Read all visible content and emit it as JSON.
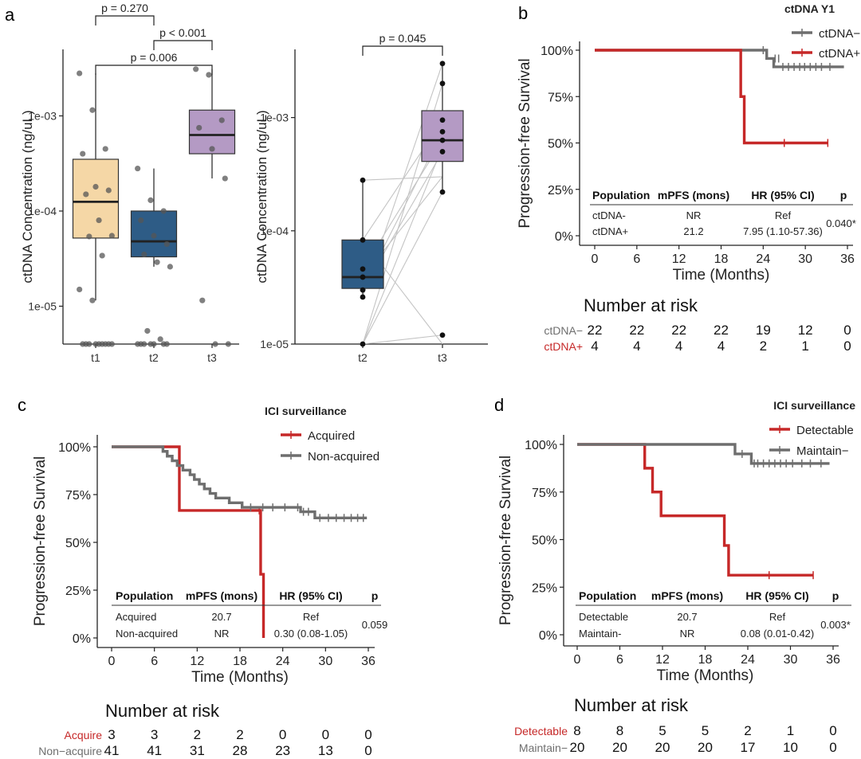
{
  "panels": {
    "a": "a",
    "b": "b",
    "c": "c",
    "d": "d"
  },
  "chart_data": [
    {
      "id": "a-left",
      "type": "box",
      "ylabel": "ctDNA Concentration (ng/uL)",
      "yscale": "log",
      "ylim": [
        4e-06,
        0.005
      ],
      "yticks": [
        "1e-05",
        "1e-04",
        "1e-03"
      ],
      "categories": [
        "t1",
        "t2",
        "t3"
      ],
      "colors": [
        "#f5d7a6",
        "#2e5c86",
        "#b49ac4"
      ],
      "boxes": [
        {
          "q1": 5.2e-05,
          "median": 0.000125,
          "q3": 0.00035,
          "whisker_low": 1.15e-05,
          "whisker_high": 0.0028
        },
        {
          "q1": 3.3e-05,
          "median": 4.8e-05,
          "q3": 0.0001,
          "whisker_low": 2.6e-05,
          "whisker_high": 0.00028
        },
        {
          "q1": 0.0004,
          "median": 0.00063,
          "q3": 0.00115,
          "whisker_low": 0.00022,
          "whisker_high": 0.0031
        }
      ],
      "points": [
        [
          0.0028,
          0.00115,
          0.00045,
          0.0004,
          0.00018,
          0.000165,
          0.00015,
          8e-05,
          5.5e-05,
          5.4e-05,
          3.4e-05,
          1.5e-05,
          1.15e-05,
          4e-06,
          4e-06,
          4e-06,
          4e-06,
          4e-06,
          4e-06,
          4e-06,
          4e-06,
          4e-06
        ],
        [
          0.00028,
          0.00013,
          0.0001,
          8e-05,
          5.5e-05,
          4.5e-05,
          3.5e-05,
          2.9e-05,
          2.6e-05,
          5.5e-06,
          4.5e-06,
          4e-06,
          4e-06,
          4e-06,
          4e-06,
          4e-06,
          4e-06,
          4e-06
        ],
        [
          0.0031,
          0.0027,
          0.0009,
          0.00075,
          0.00045,
          0.00022,
          1.15e-05,
          4e-06,
          4e-06
        ]
      ],
      "brackets": [
        {
          "from": 1,
          "to": 2,
          "label": "p = 0.270"
        },
        {
          "from": 2,
          "to": 3,
          "label": "p < 0.001"
        },
        {
          "from": 1,
          "to": 3,
          "label": "p = 0.006"
        }
      ]
    },
    {
      "id": "a-right",
      "type": "box",
      "ylabel": "ctDNA Concentration (ng/uL)",
      "yscale": "log",
      "ylim": [
        1e-05,
        0.004
      ],
      "yticks": [
        "1e-05",
        "1e-04",
        "1e-03"
      ],
      "categories": [
        "t2",
        "t3"
      ],
      "colors": [
        "#2e5c86",
        "#b49ac4"
      ],
      "boxes": [
        {
          "q1": 3.1e-05,
          "median": 3.9e-05,
          "q3": 8.3e-05,
          "whisker_low": 2.6e-05,
          "whisker_high": 0.00028
        },
        {
          "q1": 0.00041,
          "median": 0.00063,
          "q3": 0.00115,
          "whisker_low": 0.00022,
          "whisker_high": 0.003
        }
      ],
      "paired_lines": [
        [
          0.00028,
          0.0003
        ],
        [
          8.3e-05,
          0.00095
        ],
        [
          4.6e-05,
          0.00063
        ],
        [
          3.9e-05,
          0.0003
        ],
        [
          3.1e-05,
          0.00075
        ],
        [
          3e-05,
          0.0005
        ],
        [
          2.6e-05,
          0.003
        ],
        [
          1e-05,
          0.002
        ],
        [
          1e-05,
          1.2e-05
        ],
        [
          1e-05,
          0.00022
        ],
        [
          8.3e-05,
          1e-05
        ],
        [
          1e-05,
          0.00055
        ]
      ],
      "points_t2": [
        0.00028,
        8.3e-05,
        4.6e-05,
        3.9e-05,
        3e-05,
        2.6e-05,
        1e-05
      ],
      "points_t3": [
        0.003,
        0.002,
        0.00095,
        0.00075,
        0.00063,
        0.0005,
        0.00022,
        1.2e-05
      ],
      "brackets": [
        {
          "from": 1,
          "to": 2,
          "label": "p = 0.045"
        }
      ]
    },
    {
      "id": "b",
      "type": "line",
      "subtype": "kaplan-meier",
      "legend_title": "ctDNA Y1",
      "legend_position": "top-right",
      "xlabel": "Time (Months)",
      "ylabel": "Progression-free Survival",
      "xlim": [
        0,
        36
      ],
      "xticks": [
        0,
        6,
        12,
        18,
        24,
        30,
        36
      ],
      "ylim": [
        0,
        1
      ],
      "yticks": [
        "0%",
        "25%",
        "50%",
        "75%",
        "100%"
      ],
      "series": [
        {
          "name": "ctDNA−",
          "color": "#6e6e6e",
          "steps": [
            [
              0,
              1
            ],
            [
              24.5,
              0.955
            ],
            [
              25.5,
              0.91
            ],
            [
              35.5,
              0.91
            ]
          ],
          "censor": [
            [
              24,
              1
            ],
            [
              25.7,
              0.955
            ],
            [
              26.2,
              0.955
            ],
            [
              26.8,
              0.91
            ],
            [
              27.6,
              0.91
            ],
            [
              28.4,
              0.91
            ],
            [
              29.2,
              0.91
            ],
            [
              29.9,
              0.91
            ],
            [
              30.7,
              0.91
            ],
            [
              31.5,
              0.91
            ],
            [
              32.3,
              0.91
            ],
            [
              33.5,
              0.91
            ]
          ]
        },
        {
          "name": "ctDNA+",
          "color": "#c62828",
          "steps": [
            [
              0,
              1
            ],
            [
              20.8,
              0.75
            ],
            [
              21.3,
              0.5
            ],
            [
              33.2,
              0.5
            ]
          ],
          "censor": [
            [
              27,
              0.5
            ],
            [
              33.2,
              0.5
            ]
          ]
        }
      ],
      "table": {
        "headers": [
          "Population",
          "mPFS (mons)",
          "HR (95% CI)",
          "p"
        ],
        "rows": [
          [
            "ctDNA-",
            "NR",
            "Ref"
          ],
          [
            "ctDNA+",
            "21.2",
            "7.95 (1.10-57.36)"
          ]
        ],
        "p": "0.040*"
      },
      "risk": {
        "title": "Number at risk",
        "rows": [
          {
            "label": "ctDNA−",
            "color": "#6e6e6e",
            "values": [
              "22",
              "22",
              "22",
              "22",
              "19",
              "12",
              "0"
            ]
          },
          {
            "label": "ctDNA+",
            "color": "#c62828",
            "values": [
              "4",
              "4",
              "4",
              "4",
              "2",
              "1",
              "0"
            ]
          }
        ]
      }
    },
    {
      "id": "c",
      "type": "line",
      "subtype": "kaplan-meier",
      "legend_title": "ICI surveillance",
      "legend_position": "top-right",
      "xlabel": "Time (Months)",
      "ylabel": "Progression-free Survival",
      "xlim": [
        0,
        36
      ],
      "xticks": [
        0,
        6,
        12,
        18,
        24,
        30,
        36
      ],
      "ylim": [
        0,
        1
      ],
      "yticks": [
        "0%",
        "25%",
        "50%",
        "75%",
        "100%"
      ],
      "series": [
        {
          "name": "Acquired",
          "color": "#c62828",
          "steps": [
            [
              0,
              1
            ],
            [
              9.5,
              0.667
            ],
            [
              20.9,
              0.333
            ],
            [
              21.3,
              0
            ]
          ],
          "censor": [
            [
              20.7,
              0.667
            ]
          ]
        },
        {
          "name": "Non-acquired",
          "color": "#6e6e6e",
          "steps": [
            [
              0,
              1
            ],
            [
              7.2,
              0.976
            ],
            [
              7.8,
              0.951
            ],
            [
              8.5,
              0.927
            ],
            [
              9.2,
              0.902
            ],
            [
              10.0,
              0.878
            ],
            [
              11.0,
              0.854
            ],
            [
              11.6,
              0.829
            ],
            [
              12.3,
              0.805
            ],
            [
              13.0,
              0.78
            ],
            [
              13.8,
              0.756
            ],
            [
              14.6,
              0.732
            ],
            [
              16.5,
              0.707
            ],
            [
              18.3,
              0.683
            ],
            [
              26.5,
              0.66
            ],
            [
              28.5,
              0.628
            ],
            [
              35.8,
              0.628
            ]
          ],
          "censor": [
            [
              19.5,
              0.683
            ],
            [
              21.2,
              0.683
            ],
            [
              22.6,
              0.683
            ],
            [
              24.3,
              0.683
            ],
            [
              26.1,
              0.683
            ],
            [
              26.9,
              0.66
            ],
            [
              27.6,
              0.66
            ],
            [
              29.2,
              0.628
            ],
            [
              30.4,
              0.628
            ],
            [
              31.5,
              0.628
            ],
            [
              32.6,
              0.628
            ],
            [
              33.6,
              0.628
            ],
            [
              34.5,
              0.628
            ],
            [
              35.3,
              0.628
            ]
          ]
        }
      ],
      "table": {
        "headers": [
          "Population",
          "mPFS (mons)",
          "HR (95% CI)",
          "p"
        ],
        "rows": [
          [
            "Acquired",
            "20.7",
            "Ref"
          ],
          [
            "Non-acquired",
            "NR",
            "0.30 (0.08-1.05)"
          ]
        ],
        "p": "0.059"
      },
      "risk": {
        "title": "Number at risk",
        "rows": [
          {
            "label": "Acquire",
            "color": "#c62828",
            "values": [
              "3",
              "3",
              "2",
              "2",
              "0",
              "0",
              "0"
            ]
          },
          {
            "label": "Non−acquire",
            "color": "#6e6e6e",
            "values": [
              "41",
              "41",
              "31",
              "28",
              "23",
              "13",
              "0"
            ]
          }
        ]
      }
    },
    {
      "id": "d",
      "type": "line",
      "subtype": "kaplan-meier",
      "legend_title": "ICI surveillance",
      "legend_position": "top-right",
      "xlabel": "Time (Months)",
      "ylabel": "Progression-free Survival",
      "xlim": [
        0,
        36
      ],
      "xticks": [
        0,
        6,
        12,
        18,
        24,
        30,
        36
      ],
      "ylim": [
        0,
        1
      ],
      "yticks": [
        "0%",
        "25%",
        "50%",
        "75%",
        "100%"
      ],
      "series": [
        {
          "name": "Detectable",
          "color": "#c62828",
          "steps": [
            [
              0,
              1
            ],
            [
              9.5,
              0.875
            ],
            [
              10.6,
              0.75
            ],
            [
              11.8,
              0.625
            ],
            [
              20.7,
              0.469
            ],
            [
              21.3,
              0.313
            ],
            [
              33.2,
              0.313
            ]
          ],
          "censor": [
            [
              27,
              0.313
            ],
            [
              33.2,
              0.313
            ]
          ]
        },
        {
          "name": "Maintain−",
          "color": "#6e6e6e",
          "steps": [
            [
              0,
              1
            ],
            [
              22.2,
              0.95
            ],
            [
              24.5,
              0.9
            ],
            [
              35.5,
              0.9
            ]
          ],
          "censor": [
            [
              23.2,
              0.95
            ],
            [
              24.9,
              0.9
            ],
            [
              25.4,
              0.9
            ],
            [
              26.2,
              0.9
            ],
            [
              27.0,
              0.9
            ],
            [
              27.8,
              0.9
            ],
            [
              28.6,
              0.9
            ],
            [
              29.4,
              0.9
            ],
            [
              30.3,
              0.9
            ],
            [
              31.6,
              0.9
            ],
            [
              32.8,
              0.9
            ],
            [
              34.3,
              0.9
            ]
          ]
        }
      ],
      "table": {
        "headers": [
          "Population",
          "mPFS (mons)",
          "HR (95% CI)",
          "p"
        ],
        "rows": [
          [
            "Detectable",
            "20.7",
            "Ref"
          ],
          [
            "Maintain-",
            "NR",
            "0.08 (0.01-0.42)"
          ]
        ],
        "p": "0.003*"
      },
      "risk": {
        "title": "Number at risk",
        "rows": [
          {
            "label": "Detectable",
            "color": "#c62828",
            "values": [
              "8",
              "8",
              "5",
              "5",
              "2",
              "1",
              "0"
            ]
          },
          {
            "label": "Maintain−",
            "color": "#6e6e6e",
            "values": [
              "20",
              "20",
              "20",
              "20",
              "17",
              "10",
              "0"
            ]
          }
        ]
      }
    }
  ]
}
